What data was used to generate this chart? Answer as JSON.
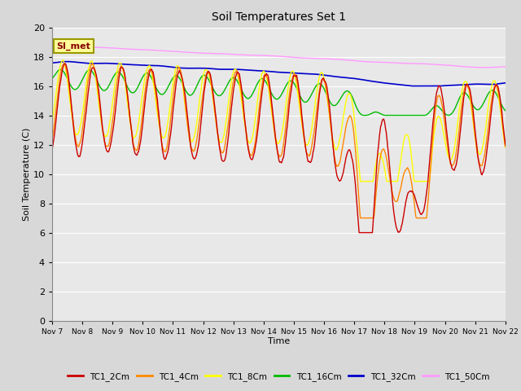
{
  "title": "Soil Temperatures Set 1",
  "xlabel": "Time",
  "ylabel": "Soil Temperature (C)",
  "ylim": [
    0,
    20
  ],
  "yticks": [
    0,
    2,
    4,
    6,
    8,
    10,
    12,
    14,
    16,
    18,
    20
  ],
  "background_color": "#d8d8d8",
  "plot_bg_color": "#e8e8e8",
  "series_colors": {
    "TC1_2Cm": "#cc0000",
    "TC1_4Cm": "#ff8800",
    "TC1_8Cm": "#ffff00",
    "TC1_16Cm": "#00bb00",
    "TC1_32Cm": "#0000cc",
    "TC1_50Cm": "#ff99ff"
  },
  "legend_label": "SI_met",
  "num_points": 720
}
